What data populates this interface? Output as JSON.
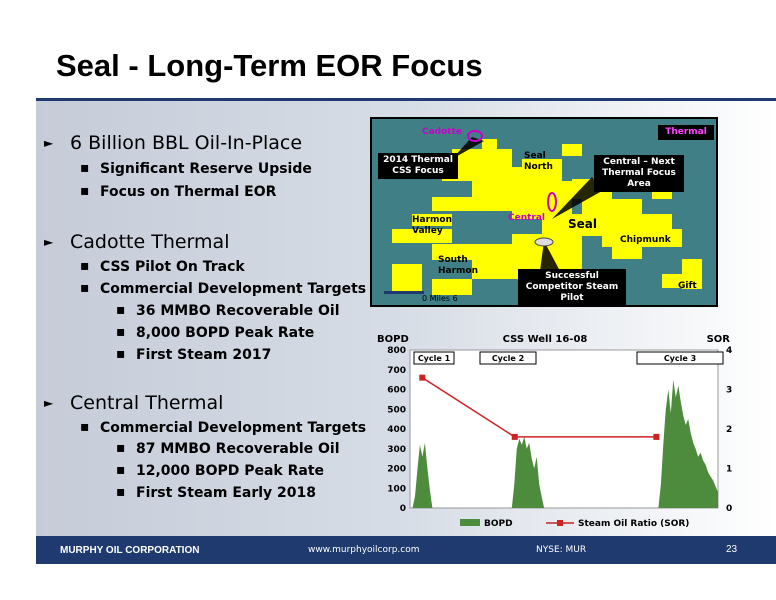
{
  "slide": {
    "title": "Seal - Long-Term EOR Focus"
  },
  "bullets": {
    "oil_in_place": "6 Billion BBL Oil-In-Place",
    "reserve_upside": "Significant Reserve Upside",
    "thermal_focus": "Focus on Thermal EOR",
    "cadotte_thermal": "Cadotte Thermal",
    "css_pilot": "CSS Pilot On Track",
    "cadotte_targets": "Commercial Development Targets",
    "cadotte_oil": "36 MMBO Recoverable Oil",
    "cadotte_peak": "8,000 BOPD Peak Rate",
    "cadotte_steam": "First Steam 2017",
    "central_thermal": "Central Thermal",
    "central_targets": "Commercial Development Targets",
    "central_oil": "87 MMBO Recoverable Oil",
    "central_peak": "12,000 BOPD Peak Rate",
    "central_steam": "First Steam Early 2018"
  },
  "map": {
    "cadotte": "Cadotte",
    "thermal": "Thermal",
    "css_focus": "2014 Thermal CSS Focus",
    "seal_north": "Seal North",
    "central_next": "Central – Next Thermal Focus Area",
    "harmon_valley": "Harmon Valley",
    "central": "Central",
    "seal": "Seal",
    "chipmunk": "Chipmunk",
    "south_harmon": "South Harmon",
    "competitor_pilot": "Successful Competitor Steam Pilot",
    "gift": "Gift",
    "scale": "0   Miles   6",
    "colors": {
      "water": "#3f7f85",
      "land": "#ffff00",
      "highlight": "#cc00cc"
    }
  },
  "chart_data": {
    "type": "bar",
    "title": "CSS Well 16-08",
    "ylabel_left": "BOPD",
    "ylabel_right": "SOR",
    "ylim_left": [
      0,
      800
    ],
    "ylim_right": [
      0,
      4
    ],
    "yticks_left": [
      "0",
      "100",
      "200",
      "300",
      "400",
      "500",
      "600",
      "700",
      "800"
    ],
    "yticks_right": [
      "0",
      "1",
      "2",
      "3",
      "4"
    ],
    "cycles": [
      "Cycle 1",
      "Cycle 2",
      "Cycle 3"
    ],
    "series": [
      {
        "name": "BOPD",
        "type": "area",
        "color": "#4c8c3c",
        "values": [
          0,
          0,
          60,
          200,
          320,
          260,
          330,
          200,
          90,
          0,
          0,
          0,
          0,
          0,
          0,
          0,
          0,
          0,
          0,
          0,
          0,
          0,
          0,
          0,
          0,
          0,
          0,
          0,
          0,
          0,
          0,
          0,
          0,
          0,
          0,
          0,
          0,
          0,
          0,
          0,
          0,
          0,
          120,
          300,
          350,
          320,
          360,
          300,
          330,
          250,
          200,
          260,
          120,
          60,
          0,
          0,
          0,
          0,
          0,
          0,
          0,
          0,
          0,
          0,
          0,
          0,
          0,
          0,
          0,
          0,
          0,
          0,
          0,
          0,
          0,
          0,
          0,
          0,
          0,
          0,
          0,
          0,
          0,
          0,
          0,
          0,
          0,
          0,
          0,
          0,
          0,
          0,
          0,
          0,
          0,
          0,
          0,
          0,
          0,
          0,
          0,
          120,
          330,
          500,
          600,
          480,
          650,
          560,
          620,
          540,
          470,
          420,
          450,
          380,
          330,
          300,
          260,
          280,
          240,
          220,
          180,
          160,
          140,
          110,
          80
        ]
      },
      {
        "name": "Steam Oil Ratio (SOR)",
        "type": "line",
        "color": "#cc2222",
        "points": [
          [
            0.04,
            3.3
          ],
          [
            0.34,
            1.8
          ],
          [
            0.8,
            1.8
          ]
        ]
      }
    ],
    "legend": "bottom"
  },
  "footer": {
    "company": "MURPHY OIL CORPORATION",
    "url": "www.murphyoilcorp.com",
    "ticker": "NYSE: MUR",
    "page_number": "23"
  }
}
